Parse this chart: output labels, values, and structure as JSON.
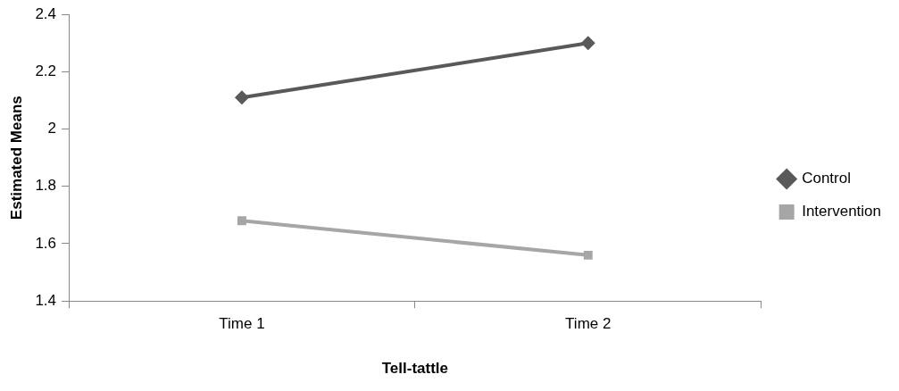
{
  "chart_data": {
    "type": "line",
    "xlabel": "Tell-tattle",
    "ylabel": "Estimated Means",
    "categories": [
      "Time 1",
      "Time 2"
    ],
    "series": [
      {
        "name": "Control",
        "color": "#595959",
        "values": [
          2.11,
          2.3
        ],
        "marker": "diamond"
      },
      {
        "name": "Intervention",
        "color": "#a6a6a6",
        "values": [
          1.68,
          1.56
        ],
        "marker": "square"
      }
    ],
    "ylim": [
      1.4,
      2.4
    ],
    "yticks": [
      1.4,
      1.6,
      1.8,
      2,
      2.2,
      2.4
    ],
    "grid": false,
    "legend": "right"
  }
}
